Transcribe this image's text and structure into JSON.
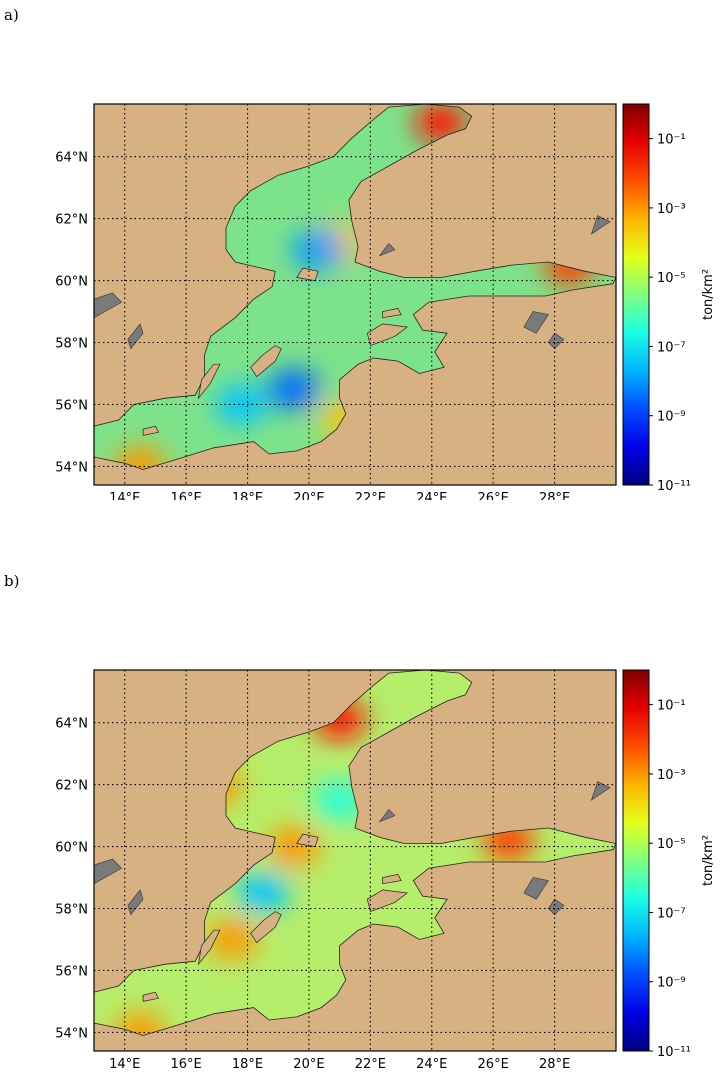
{
  "chart_data": [
    {
      "type": "heatmap",
      "panel": "a)",
      "x_tick_labels": [
        "14°E",
        "16°E",
        "18°E",
        "20°E",
        "22°E",
        "24°E",
        "26°E",
        "28°E"
      ],
      "y_tick_labels": [
        "54°N",
        "56°N",
        "58°N",
        "60°N",
        "62°N",
        "64°N"
      ],
      "x_ticks": [
        14,
        16,
        18,
        20,
        22,
        24,
        26,
        28
      ],
      "y_ticks": [
        54,
        56,
        58,
        60,
        62,
        64
      ],
      "xlim": [
        13,
        30
      ],
      "ylim": [
        53.4,
        65.7
      ],
      "grid": true,
      "colorbar": {
        "label": "ton/km²",
        "scale": "log",
        "range": [
          1e-11,
          1
        ],
        "tick_values": [
          -11,
          -9,
          -7,
          -5,
          -3,
          -1
        ],
        "tick_labels": [
          "10⁻¹¹",
          "10⁻⁹",
          "10⁻⁷",
          "10⁻⁵",
          "10⁻³",
          "10⁻¹"
        ]
      },
      "colors": {
        "land": "#d7b182",
        "lakes": "#7a7a7a",
        "sea_base": "#7de38a"
      },
      "hotspots": [
        {
          "lon": 24.3,
          "lat": 65.1,
          "value": -1.5
        },
        {
          "lon": 28.5,
          "lat": 60.5,
          "value": -2
        },
        {
          "lon": 21.0,
          "lat": 61.2,
          "value": -3.5
        },
        {
          "lon": 14.5,
          "lat": 54.0,
          "value": -3
        },
        {
          "lon": 21.2,
          "lat": 55.5,
          "value": -3.5
        },
        {
          "lon": 20.3,
          "lat": 61.0,
          "value": -8
        },
        {
          "lon": 19.5,
          "lat": 56.5,
          "value": -8.5
        },
        {
          "lon": 17.8,
          "lat": 56.0,
          "value": -7.5
        }
      ]
    },
    {
      "type": "heatmap",
      "panel": "b)",
      "x_tick_labels": [
        "14°E",
        "16°E",
        "18°E",
        "20°E",
        "22°E",
        "24°E",
        "26°E",
        "28°E"
      ],
      "y_tick_labels": [
        "54°N",
        "56°N",
        "58°N",
        "60°N",
        "62°N",
        "64°N"
      ],
      "x_ticks": [
        14,
        16,
        18,
        20,
        22,
        24,
        26,
        28
      ],
      "y_ticks": [
        54,
        56,
        58,
        60,
        62,
        64
      ],
      "xlim": [
        13,
        30
      ],
      "ylim": [
        53.4,
        65.7
      ],
      "grid": true,
      "colorbar": {
        "label": "ton/km²",
        "scale": "log",
        "range": [
          1e-11,
          1
        ],
        "tick_values": [
          -11,
          -9,
          -7,
          -5,
          -3,
          -1
        ],
        "tick_labels": [
          "10⁻¹¹",
          "10⁻⁹",
          "10⁻⁷",
          "10⁻⁵",
          "10⁻³",
          "10⁻¹"
        ]
      },
      "colors": {
        "land": "#d7b182",
        "lakes": "#7a7a7a",
        "sea_base": "#b5ee6a"
      },
      "hotspots": [
        {
          "lon": 21.0,
          "lat": 64.1,
          "value": -1.5
        },
        {
          "lon": 26.5,
          "lat": 60.2,
          "value": -2
        },
        {
          "lon": 17.0,
          "lat": 62.0,
          "value": -3
        },
        {
          "lon": 19.5,
          "lat": 60.0,
          "value": -3
        },
        {
          "lon": 17.5,
          "lat": 57.0,
          "value": -3
        },
        {
          "lon": 14.5,
          "lat": 54.0,
          "value": -3
        },
        {
          "lon": 18.5,
          "lat": 58.5,
          "value": -7.5
        },
        {
          "lon": 21.0,
          "lat": 61.5,
          "value": -6.5
        }
      ]
    }
  ]
}
